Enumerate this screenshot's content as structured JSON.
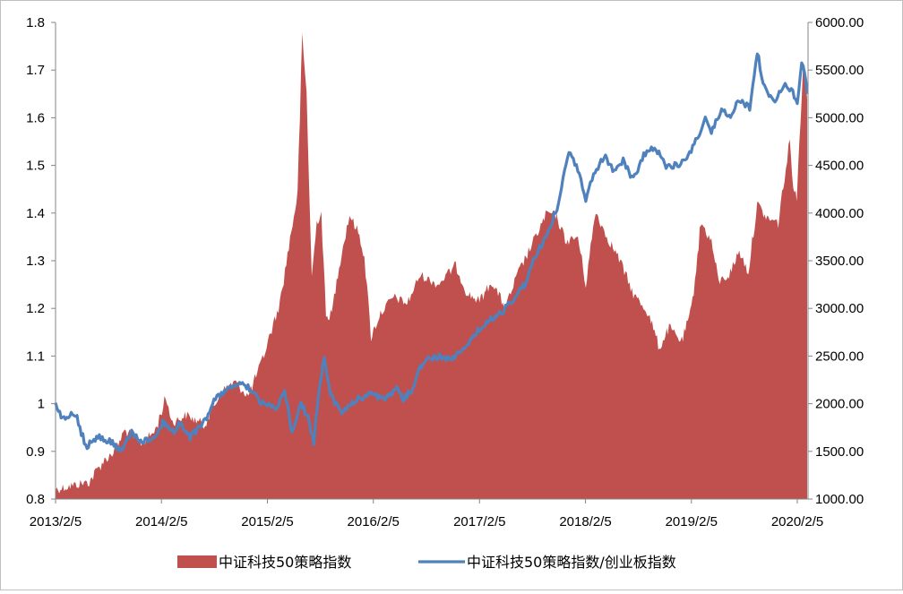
{
  "chart_data": {
    "type": "area-line-dual-axis",
    "title": "",
    "x_ticks": [
      "2013/2/5",
      "2014/2/5",
      "2015/2/5",
      "2016/2/5",
      "2017/2/5",
      "2018/2/5",
      "2019/2/5",
      "2020/2/5"
    ],
    "y_left": {
      "lim": [
        0.8,
        1.8
      ],
      "ticks": [
        "0.8",
        "0.9",
        "1",
        "1.1",
        "1.2",
        "1.3",
        "1.4",
        "1.5",
        "1.6",
        "1.7",
        "1.8"
      ]
    },
    "y_right": {
      "lim": [
        1000,
        6000
      ],
      "ticks": [
        "1000.00",
        "1500.00",
        "2000.00",
        "2500.00",
        "3000.00",
        "3500.00",
        "4000.00",
        "4500.00",
        "5000.00",
        "5500.00",
        "6000.00"
      ]
    },
    "series": [
      {
        "name": "中证科技50策略指数",
        "kind": "area",
        "axis": "right",
        "color": "#c0504d",
        "points": [
          [
            "2013-02-05",
            1100
          ],
          [
            "2013-04-01",
            1140
          ],
          [
            "2013-06-01",
            1180
          ],
          [
            "2013-07-15",
            1380
          ],
          [
            "2013-09-01",
            1520
          ],
          [
            "2013-10-01",
            1720
          ],
          [
            "2013-12-01",
            1580
          ],
          [
            "2014-01-15",
            1720
          ],
          [
            "2014-02-20",
            2060
          ],
          [
            "2014-03-15",
            1800
          ],
          [
            "2014-05-01",
            1880
          ],
          [
            "2014-07-01",
            1780
          ],
          [
            "2014-09-01",
            2130
          ],
          [
            "2014-10-15",
            2230
          ],
          [
            "2014-12-01",
            2080
          ],
          [
            "2015-01-15",
            2420
          ],
          [
            "2015-02-20",
            2780
          ],
          [
            "2015-03-20",
            3050
          ],
          [
            "2015-04-20",
            3650
          ],
          [
            "2015-05-20",
            4200
          ],
          [
            "2015-06-05",
            5850
          ],
          [
            "2015-06-20",
            5250
          ],
          [
            "2015-07-08",
            3320
          ],
          [
            "2015-07-25",
            3900
          ],
          [
            "2015-08-10",
            4000
          ],
          [
            "2015-08-26",
            2900
          ],
          [
            "2015-09-15",
            2950
          ],
          [
            "2015-10-10",
            3450
          ],
          [
            "2015-11-15",
            3980
          ],
          [
            "2015-12-15",
            3800
          ],
          [
            "2016-01-05",
            3550
          ],
          [
            "2016-01-28",
            2700
          ],
          [
            "2016-03-01",
            2950
          ],
          [
            "2016-04-15",
            3120
          ],
          [
            "2016-06-01",
            3050
          ],
          [
            "2016-07-15",
            3350
          ],
          [
            "2016-09-15",
            3250
          ],
          [
            "2016-11-15",
            3450
          ],
          [
            "2016-12-25",
            3150
          ],
          [
            "2017-02-05",
            3080
          ],
          [
            "2017-03-20",
            3280
          ],
          [
            "2017-05-05",
            3000
          ],
          [
            "2017-06-15",
            3350
          ],
          [
            "2017-08-10",
            3700
          ],
          [
            "2017-09-25",
            4000
          ],
          [
            "2017-10-25",
            3980
          ],
          [
            "2017-12-01",
            3700
          ],
          [
            "2018-01-10",
            3750
          ],
          [
            "2018-02-06",
            3250
          ],
          [
            "2018-03-12",
            4020
          ],
          [
            "2018-04-15",
            3780
          ],
          [
            "2018-06-01",
            3520
          ],
          [
            "2018-07-20",
            3150
          ],
          [
            "2018-09-10",
            2950
          ],
          [
            "2018-10-18",
            2580
          ],
          [
            "2018-11-20",
            2800
          ],
          [
            "2019-01-03",
            2650
          ],
          [
            "2019-02-05",
            2980
          ],
          [
            "2019-03-10",
            3900
          ],
          [
            "2019-04-15",
            3700
          ],
          [
            "2019-05-10",
            3280
          ],
          [
            "2019-06-15",
            3350
          ],
          [
            "2019-07-20",
            3600
          ],
          [
            "2019-08-20",
            3380
          ],
          [
            "2019-09-20",
            4100
          ],
          [
            "2019-10-20",
            3950
          ],
          [
            "2019-12-01",
            3900
          ],
          [
            "2020-01-10",
            4750
          ],
          [
            "2020-01-22",
            4300
          ],
          [
            "2020-02-03",
            4150
          ],
          [
            "2020-02-25",
            5600
          ],
          [
            "2020-03-06",
            5400
          ],
          [
            "2020-03-10",
            5200
          ]
        ]
      },
      {
        "name": "中证科技50策略指数/创业板指数",
        "kind": "line",
        "axis": "left",
        "color": "#4f81bd",
        "points": [
          [
            "2013-02-05",
            1.0
          ],
          [
            "2013-03-01",
            0.97
          ],
          [
            "2013-04-15",
            0.98
          ],
          [
            "2013-05-20",
            0.91
          ],
          [
            "2013-07-01",
            0.93
          ],
          [
            "2013-08-15",
            0.92
          ],
          [
            "2013-09-15",
            0.9
          ],
          [
            "2013-10-25",
            0.94
          ],
          [
            "2013-12-01",
            0.92
          ],
          [
            "2014-01-10",
            0.93
          ],
          [
            "2014-02-10",
            0.96
          ],
          [
            "2014-03-20",
            0.94
          ],
          [
            "2014-04-10",
            0.96
          ],
          [
            "2014-05-15",
            0.93
          ],
          [
            "2014-07-01",
            0.96
          ],
          [
            "2014-08-10",
            1.01
          ],
          [
            "2014-09-20",
            1.03
          ],
          [
            "2014-11-01",
            1.04
          ],
          [
            "2014-12-15",
            1.03
          ],
          [
            "2015-01-10",
            1.0
          ],
          [
            "2015-02-10",
            1.0
          ],
          [
            "2015-03-10",
            0.99
          ],
          [
            "2015-04-05",
            1.03
          ],
          [
            "2015-05-01",
            0.94
          ],
          [
            "2015-06-01",
            1.0
          ],
          [
            "2015-06-25",
            0.97
          ],
          [
            "2015-07-15",
            0.92
          ],
          [
            "2015-08-01",
            1.03
          ],
          [
            "2015-08-20",
            1.1
          ],
          [
            "2015-09-10",
            1.02
          ],
          [
            "2015-10-20",
            0.98
          ],
          [
            "2015-12-15",
            1.01
          ],
          [
            "2016-02-01",
            1.02
          ],
          [
            "2016-03-15",
            1.01
          ],
          [
            "2016-04-25",
            1.03
          ],
          [
            "2016-05-20",
            1.01
          ],
          [
            "2016-06-20",
            1.03
          ],
          [
            "2016-07-25",
            1.09
          ],
          [
            "2016-09-20",
            1.1
          ],
          [
            "2016-11-01",
            1.09
          ],
          [
            "2016-12-15",
            1.12
          ],
          [
            "2017-01-25",
            1.15
          ],
          [
            "2017-03-01",
            1.17
          ],
          [
            "2017-04-20",
            1.19
          ],
          [
            "2017-06-05",
            1.22
          ],
          [
            "2017-07-10",
            1.25
          ],
          [
            "2017-08-15",
            1.31
          ],
          [
            "2017-09-20",
            1.35
          ],
          [
            "2017-10-30",
            1.41
          ],
          [
            "2017-11-25",
            1.49
          ],
          [
            "2017-12-15",
            1.53
          ],
          [
            "2018-01-15",
            1.48
          ],
          [
            "2018-02-06",
            1.43
          ],
          [
            "2018-03-05",
            1.48
          ],
          [
            "2018-04-10",
            1.52
          ],
          [
            "2018-05-10",
            1.49
          ],
          [
            "2018-06-15",
            1.51
          ],
          [
            "2018-07-20",
            1.47
          ],
          [
            "2018-08-25",
            1.52
          ],
          [
            "2018-10-01",
            1.54
          ],
          [
            "2018-11-10",
            1.5
          ],
          [
            "2018-12-20",
            1.5
          ],
          [
            "2019-01-20",
            1.51
          ],
          [
            "2019-02-20",
            1.55
          ],
          [
            "2019-03-25",
            1.6
          ],
          [
            "2019-04-15",
            1.57
          ],
          [
            "2019-05-20",
            1.62
          ],
          [
            "2019-06-15",
            1.6
          ],
          [
            "2019-07-20",
            1.64
          ],
          [
            "2019-08-25",
            1.62
          ],
          [
            "2019-09-20",
            1.74
          ],
          [
            "2019-10-10",
            1.67
          ],
          [
            "2019-11-15",
            1.63
          ],
          [
            "2019-12-20",
            1.67
          ],
          [
            "2020-01-15",
            1.66
          ],
          [
            "2020-02-05",
            1.63
          ],
          [
            "2020-02-20",
            1.72
          ],
          [
            "2020-03-05",
            1.68
          ],
          [
            "2020-03-10",
            1.65
          ]
        ]
      }
    ],
    "legend_position": "bottom",
    "grid": false
  }
}
